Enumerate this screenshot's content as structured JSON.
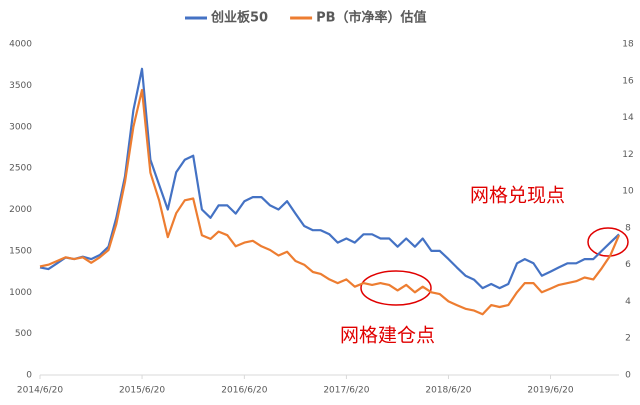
{
  "chart_data": {
    "type": "line",
    "x": [
      "2014/6/20",
      "2014/7/20",
      "2014/8/20",
      "2014/9/20",
      "2014/10/20",
      "2014/11/20",
      "2014/12/20",
      "2015/1/20",
      "2015/2/20",
      "2015/3/20",
      "2015/4/20",
      "2015/5/20",
      "2015/6/20",
      "2015/7/20",
      "2015/8/20",
      "2015/9/20",
      "2015/10/20",
      "2015/11/20",
      "2015/12/20",
      "2016/1/20",
      "2016/2/20",
      "2016/3/20",
      "2016/4/20",
      "2016/5/20",
      "2016/6/20",
      "2016/7/20",
      "2016/8/20",
      "2016/9/20",
      "2016/10/20",
      "2016/11/20",
      "2016/12/20",
      "2017/1/20",
      "2017/2/20",
      "2017/3/20",
      "2017/4/20",
      "2017/5/20",
      "2017/6/20",
      "2017/7/20",
      "2017/8/20",
      "2017/9/20",
      "2017/10/20",
      "2017/11/20",
      "2017/12/20",
      "2018/1/20",
      "2018/2/20",
      "2018/3/20",
      "2018/4/20",
      "2018/5/20",
      "2018/6/20",
      "2018/7/20",
      "2018/8/20",
      "2018/9/20",
      "2018/10/20",
      "2018/11/20",
      "2018/12/20",
      "2019/1/20",
      "2019/2/20",
      "2019/3/20",
      "2019/4/20",
      "2019/5/20",
      "2019/6/20",
      "2019/7/20",
      "2019/8/20",
      "2019/9/20",
      "2019/10/20",
      "2019/11/20",
      "2019/12/20",
      "2020/1/20",
      "2020/2/20"
    ],
    "series": [
      {
        "name": "创业板50",
        "color": "#4472c4",
        "values": [
          1300,
          1280,
          1350,
          1420,
          1400,
          1430,
          1400,
          1450,
          1550,
          1900,
          2400,
          3200,
          3700,
          2600,
          2300,
          2000,
          2450,
          2600,
          2650,
          2000,
          1900,
          2050,
          2050,
          1950,
          2100,
          2150,
          2150,
          2050,
          2000,
          2100,
          1950,
          1800,
          1750,
          1750,
          1700,
          1600,
          1650,
          1600,
          1700,
          1700,
          1650,
          1650,
          1550,
          1650,
          1550,
          1650,
          1500,
          1500,
          1400,
          1300,
          1200,
          1150,
          1050,
          1100,
          1050,
          1100,
          1350,
          1400,
          1350,
          1200,
          1250,
          1300,
          1350,
          1350,
          1400,
          1400,
          1500,
          1600,
          1700
        ]
      },
      {
        "name": "PB（市净率）估值",
        "color": "#ed7d31",
        "axis": "y2",
        "values": [
          5.9,
          6.0,
          6.2,
          6.4,
          6.3,
          6.4,
          6.1,
          6.4,
          6.8,
          8.2,
          10.5,
          13.5,
          15.5,
          11,
          9.5,
          7.5,
          8.8,
          9.5,
          9.6,
          7.6,
          7.4,
          7.8,
          7.6,
          7.0,
          7.2,
          7.3,
          7.0,
          6.8,
          6.5,
          6.7,
          6.2,
          6.0,
          5.6,
          5.5,
          5.2,
          5.0,
          5.2,
          4.8,
          5.0,
          4.9,
          5.0,
          4.9,
          4.6,
          4.9,
          4.5,
          4.8,
          4.5,
          4.4,
          4.0,
          3.8,
          3.6,
          3.5,
          3.3,
          3.8,
          3.7,
          3.8,
          4.5,
          5.0,
          5.0,
          4.5,
          4.7,
          4.9,
          5.0,
          5.1,
          5.3,
          5.2,
          5.8,
          6.5,
          7.6
        ]
      }
    ],
    "xlim": [
      "2014/6/20",
      "2020/2/20"
    ],
    "xticks": [
      "2014/6/20",
      "2015/6/20",
      "2016/6/20",
      "2017/6/20",
      "2018/6/20",
      "2019/6/20"
    ],
    "ylim": [
      0,
      4000
    ],
    "yticks": [
      0,
      500,
      1000,
      1500,
      2000,
      2500,
      3000,
      3500,
      4000
    ],
    "y2lim": [
      0,
      18
    ],
    "y2ticks": [
      0,
      2,
      4,
      6,
      8,
      10,
      12,
      14,
      16,
      18
    ],
    "grid": false,
    "legend": "top",
    "annotations": [
      "网格兑现点",
      "网格建仓点"
    ]
  }
}
